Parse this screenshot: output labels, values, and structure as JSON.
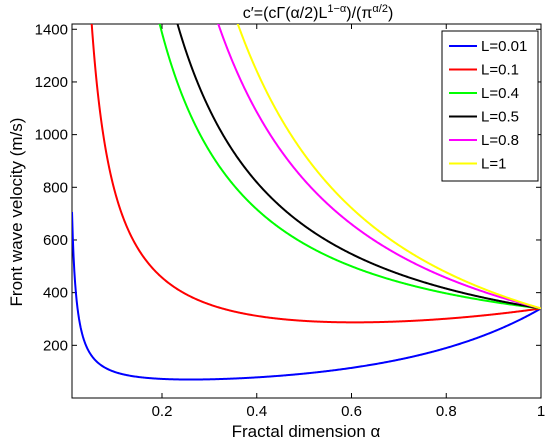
{
  "chart_data": {
    "type": "line",
    "title": "c′=(cΓ(α/2)L^(1−α))/(π^(α/2))",
    "title_parts": {
      "lhs": "c′=(cΓ(α/2)L",
      "exp1": "1−α",
      "mid": ")/(π",
      "exp2": "α/2",
      "rhs": ")"
    },
    "xlabel": "Fractal dimension α",
    "ylabel": "Front wave velocity  (m/s)",
    "xlim": [
      0.01,
      1.0
    ],
    "ylim": [
      0,
      1420
    ],
    "xticks": [
      0.2,
      0.4,
      0.6,
      0.8,
      1
    ],
    "xtick_labels": [
      "0.2",
      "0.4",
      "0.6",
      "0.8",
      "1"
    ],
    "yticks": [
      200,
      400,
      600,
      800,
      1000,
      1200,
      1400
    ],
    "ytick_labels": [
      "200",
      "400",
      "600",
      "800",
      "1000",
      "1200",
      "1400"
    ],
    "grid": false,
    "legend_position": "top-right",
    "c": 340,
    "series": [
      {
        "name": "L=0.01",
        "L": 0.01,
        "color": "#0000ff"
      },
      {
        "name": "L=0.1",
        "L": 0.1,
        "color": "#ff0000"
      },
      {
        "name": "L=0.4",
        "L": 0.4,
        "color": "#00ff00"
      },
      {
        "name": "L=0.5",
        "L": 0.5,
        "color": "#000000"
      },
      {
        "name": "L=0.8",
        "L": 0.8,
        "color": "#ff00ff"
      },
      {
        "name": "L=1",
        "L": 1.0,
        "color": "#ffff00"
      }
    ]
  }
}
